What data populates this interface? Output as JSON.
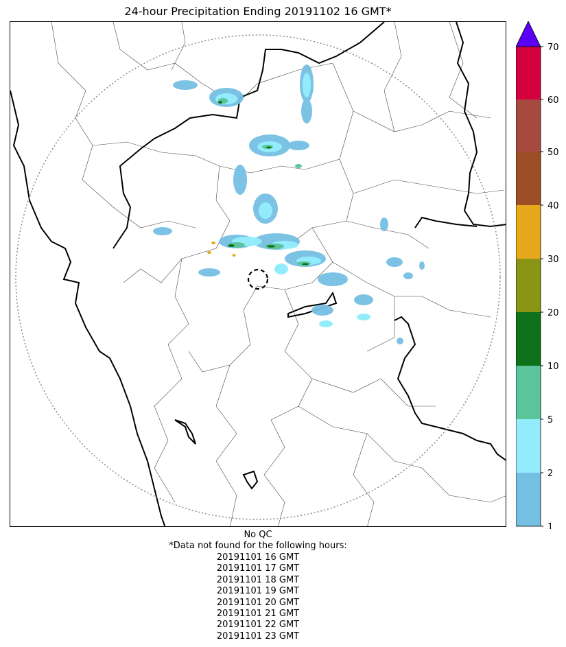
{
  "title": "24-hour Precipitation Ending 20191102 16 GMT*",
  "colorbar": {
    "ticks": [
      "1",
      "2",
      "5",
      "10",
      "20",
      "30",
      "40",
      "50",
      "60",
      "70"
    ],
    "colors": [
      "#75bfe3",
      "#93ecfc",
      "#5cc49a",
      "#0e721b",
      "#8a9516",
      "#e7a91b",
      "#9d4e26",
      "#a64a40",
      "#d5013f"
    ],
    "extend_color": "#5a00f5"
  },
  "map": {
    "radar_range_ring": "dotted",
    "radar_site_marker": "dashed-circle"
  },
  "notes": {
    "qc": "No QC",
    "missing_header": "*Data not found for the following hours:",
    "missing_hours": [
      "20191101 16 GMT",
      "20191101 17 GMT",
      "20191101 18 GMT",
      "20191101 19 GMT",
      "20191101 20 GMT",
      "20191101 21 GMT",
      "20191101 22 GMT",
      "20191101 23 GMT"
    ]
  }
}
